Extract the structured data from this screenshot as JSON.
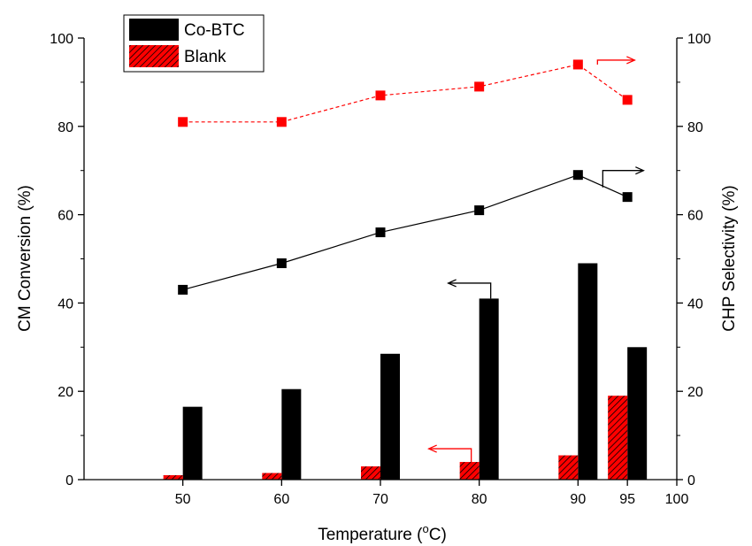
{
  "chart_data": {
    "type": "bar",
    "xlabel": "Temperature",
    "xlabel_unit": "(°C)",
    "xlabel_unit_open": "(",
    "xlabel_unit_deg": "o",
    "xlabel_unit_close": "C)",
    "ylabel_left": "CM Conversion (%)",
    "ylabel_right": "CHP Selectivity (%)",
    "xlim": [
      40,
      100
    ],
    "ylim": [
      0,
      100
    ],
    "x_ticks": [
      "50",
      "60",
      "70",
      "80",
      "90",
      "95",
      "100"
    ],
    "x_tick_values": [
      50,
      60,
      70,
      80,
      90,
      95,
      100
    ],
    "y_ticks": [
      "0",
      "20",
      "40",
      "60",
      "80",
      "100"
    ],
    "y_tick_values": [
      0,
      20,
      40,
      60,
      80,
      100
    ],
    "categories": [
      50,
      60,
      70,
      80,
      90,
      95
    ],
    "legend_position": "top-left",
    "bar_series": [
      {
        "name": "Co-BTC",
        "axis": "left",
        "color": "#000000",
        "pattern": "solid",
        "values": [
          16.5,
          20.5,
          28.5,
          41,
          49,
          30
        ]
      },
      {
        "name": "Blank",
        "axis": "left",
        "color": "#ff0000",
        "pattern": "hatched",
        "values": [
          1,
          1.5,
          3,
          4,
          5.5,
          19
        ]
      }
    ],
    "line_series": [
      {
        "axis": "right",
        "color": "#ff0000",
        "line_style": "dashed",
        "marker": "square",
        "x": [
          50,
          60,
          70,
          80,
          90,
          95
        ],
        "values": [
          81,
          81,
          87,
          89,
          94,
          86
        ]
      },
      {
        "axis": "right",
        "color": "#000000",
        "line_style": "solid",
        "marker": "square",
        "x": [
          50,
          60,
          70,
          80,
          90,
          95
        ],
        "values": [
          43,
          49,
          56,
          61,
          69,
          64
        ]
      }
    ],
    "annotations": [
      {
        "type": "axis-arrow",
        "direction": "right",
        "points_to": "right-axis",
        "color": "#ff0000",
        "target_series": "red line"
      },
      {
        "type": "axis-arrow",
        "direction": "right",
        "points_to": "right-axis",
        "color": "#000000",
        "target_series": "black line"
      },
      {
        "type": "axis-arrow",
        "direction": "left",
        "points_to": "left-axis",
        "color": "#000000",
        "target_series": "Co-BTC bars"
      },
      {
        "type": "axis-arrow",
        "direction": "left",
        "points_to": "left-axis",
        "color": "#ff0000",
        "target_series": "Blank bars"
      }
    ]
  }
}
